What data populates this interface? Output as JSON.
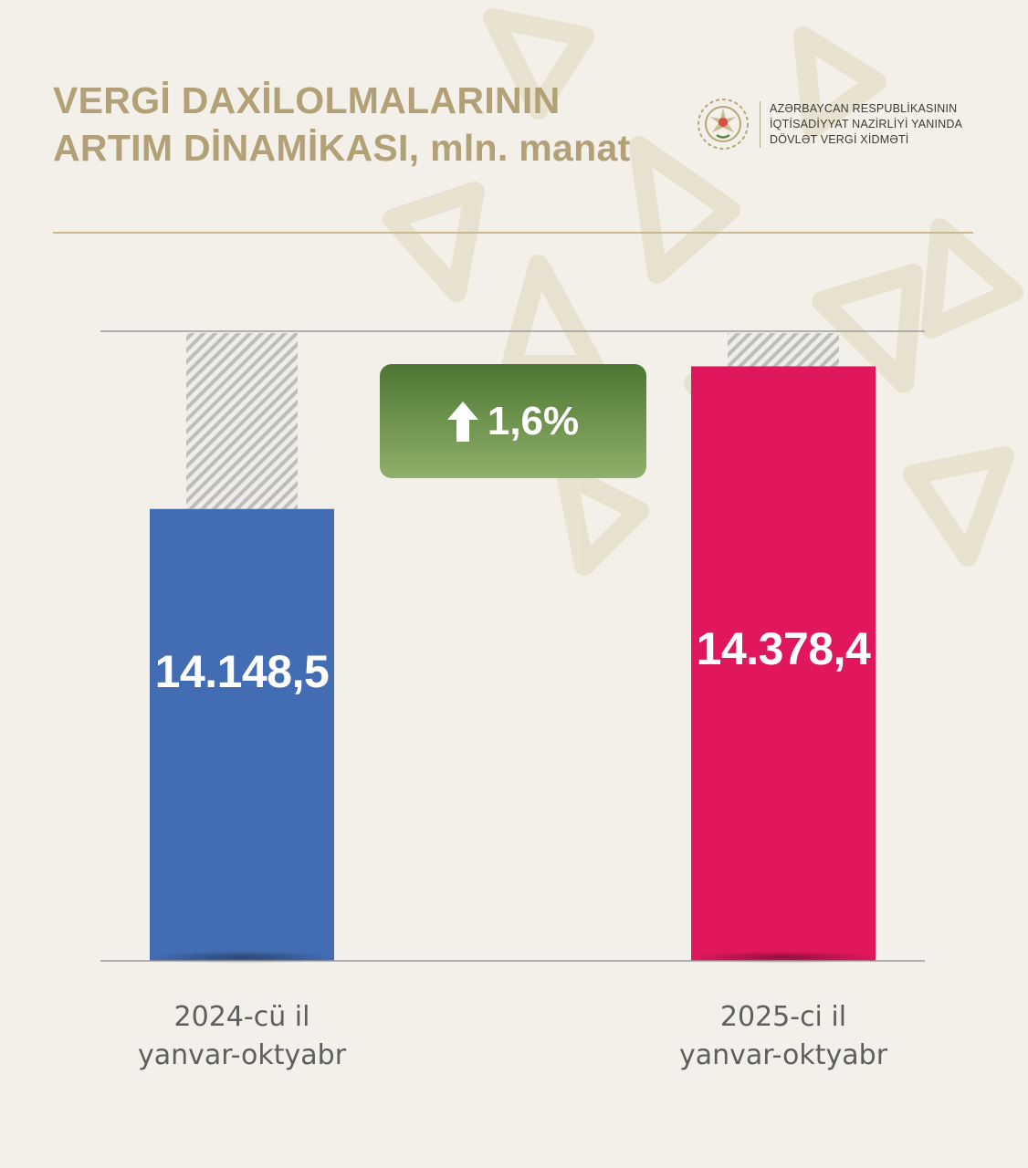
{
  "title": {
    "line1": "VERGİ DAXİLOLMALARININ",
    "line2": "ARTIM DİNAMİKASI, mln. manat"
  },
  "organization": {
    "line1": "AZƏRBAYCAN RESPUBLİKASININ",
    "line2": "İQTİSADİYYAT NAZİRLİYİ YANINDA",
    "line3": "DÖVLƏT VERGİ XİDMƏTİ",
    "emblem_icon": "state-emblem-icon"
  },
  "growth_badge": {
    "icon": "arrow-up-icon",
    "label": "1,6%",
    "color": "#6a9346"
  },
  "chart_data": {
    "type": "bar",
    "categories": [
      {
        "line1": "2024-cü il",
        "line2": "yanvar-oktyabr"
      },
      {
        "line1": "2025-ci il",
        "line2": "yanvar-oktyabr"
      }
    ],
    "values": [
      14148.5,
      14378.4
    ],
    "value_labels": [
      "14.148,5",
      "14.378,4"
    ],
    "colors": [
      "#436db3",
      "#e0175d"
    ],
    "xlabel": "",
    "ylabel": "",
    "grid": false,
    "legend": "none"
  }
}
